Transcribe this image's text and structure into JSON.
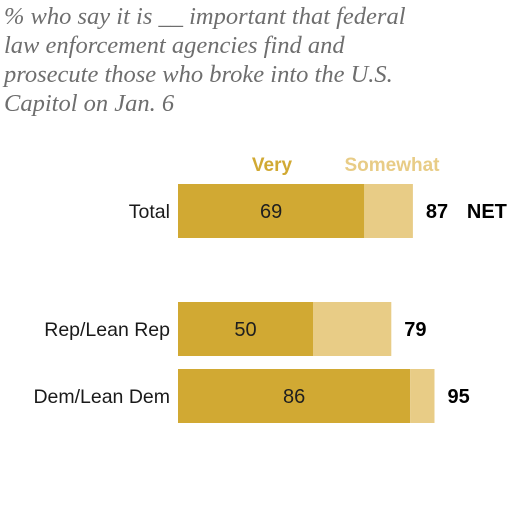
{
  "chart_data": {
    "type": "bar",
    "orientation": "horizontal",
    "stacked": true,
    "title_lines": [
      "% who say it is __ important that federal",
      "law enforcement agencies find and",
      "prosecute those who broke into the U.S.",
      "Capitol on Jan. 6"
    ],
    "categories": [
      "Total",
      "Rep/Lean Rep",
      "Dem/Lean Dem"
    ],
    "series": [
      {
        "name": "Very",
        "values": [
          69,
          50,
          86
        ],
        "color": "#d1a933"
      },
      {
        "name": "Somewhat",
        "values": [
          18,
          29,
          9
        ],
        "color": "#e8cc86"
      }
    ],
    "bar_value_labels": [
      "69",
      "50",
      "86"
    ],
    "net_labels": [
      "87",
      "79",
      "95"
    ],
    "net_suffix": "NET",
    "xlim": [
      0,
      100
    ],
    "grid": false,
    "legend_position": "top"
  }
}
